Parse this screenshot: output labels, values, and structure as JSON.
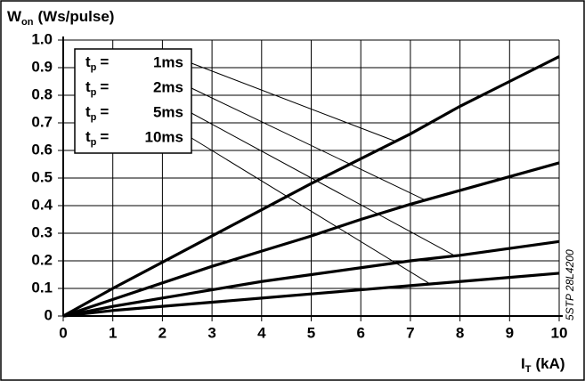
{
  "chart_data": {
    "type": "line",
    "y_label": {
      "symbol": "W",
      "sub": "on",
      "unit": "(Ws/pulse)"
    },
    "x_label": {
      "symbol": "I",
      "sub": "T",
      "unit": "(kA)"
    },
    "legend_symbol": {
      "symbol": "t",
      "sub": "p",
      "eq": "="
    },
    "side_note": "5STP 28L4200",
    "x": [
      0,
      1,
      2,
      3,
      4,
      5,
      6,
      7,
      8,
      9,
      10
    ],
    "series": [
      {
        "name": "1ms",
        "color": "#000000",
        "values": [
          0,
          0.1,
          0.195,
          0.29,
          0.385,
          0.48,
          0.57,
          0.66,
          0.76,
          0.85,
          0.94
        ]
      },
      {
        "name": "2ms",
        "color": "#000000",
        "values": [
          0,
          0.06,
          0.12,
          0.18,
          0.235,
          0.29,
          0.35,
          0.405,
          0.455,
          0.505,
          0.555
        ]
      },
      {
        "name": "5ms",
        "color": "#000000",
        "values": [
          0,
          0.035,
          0.065,
          0.095,
          0.125,
          0.15,
          0.175,
          0.2,
          0.22,
          0.245,
          0.27
        ]
      },
      {
        "name": "10ms",
        "color": "#000000",
        "values": [
          0,
          0.02,
          0.035,
          0.05,
          0.065,
          0.08,
          0.095,
          0.11,
          0.125,
          0.14,
          0.155
        ]
      }
    ],
    "xlim": [
      0,
      10
    ],
    "xticks": [
      0,
      1,
      2,
      3,
      4,
      5,
      6,
      7,
      8,
      9,
      10
    ],
    "ylim": [
      0,
      1
    ],
    "yticks": [
      0,
      0.1,
      0.2,
      0.3,
      0.4,
      0.5,
      0.6,
      0.7,
      0.8,
      0.9,
      {
        "value": 1,
        "label": "1.0"
      }
    ],
    "grid": true
  }
}
